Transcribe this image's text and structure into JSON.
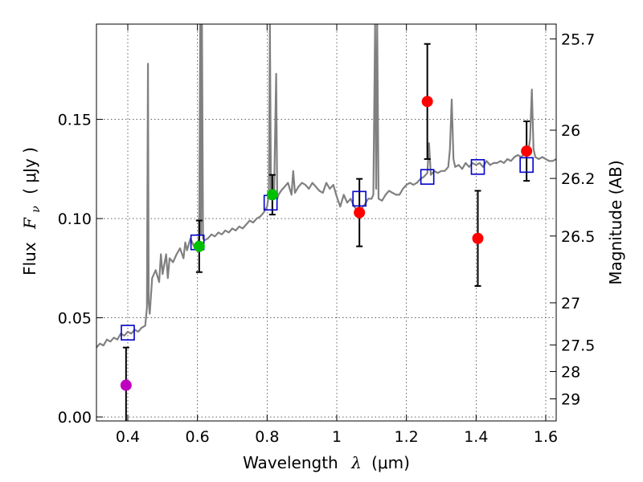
{
  "chart_data": {
    "type": "scatter",
    "xlabel": "Wavelength",
    "xlabel_symbol": "λ",
    "xlabel_unit": "(μm)",
    "ylabel": "Flux",
    "ylabel_symbol": "F",
    "ylabel_subscript": "ν",
    "ylabel_unit": "( μJy )",
    "y2label": "Magnitude (AB)",
    "xlim": [
      0.31,
      1.63
    ],
    "ylim": [
      -0.002,
      0.198
    ],
    "grid": true,
    "x_ticks": [
      0.4,
      0.6,
      0.8,
      1.0,
      1.2,
      1.4,
      1.6
    ],
    "x_tick_labels": [
      "0.4",
      "0.6",
      "0.8",
      "1",
      "1.2",
      "1.4",
      "1.6"
    ],
    "y_ticks": [
      0.0,
      0.05,
      0.1,
      0.15
    ],
    "y_tick_labels": [
      "0.00",
      "0.05",
      "0.10",
      "0.15"
    ],
    "mag_ticks": [
      25.7,
      26,
      26.2,
      26.5,
      27,
      27.5,
      28,
      29
    ],
    "mag_tick_labels": [
      "25.7",
      "26",
      "26.2",
      "26.5",
      "27",
      "27.5",
      "28",
      "29"
    ],
    "model_spectrum": {
      "name": "model spectrum",
      "color": "#808080",
      "x": [
        0.31,
        0.32,
        0.33,
        0.34,
        0.35,
        0.36,
        0.37,
        0.38,
        0.39,
        0.4,
        0.41,
        0.42,
        0.43,
        0.44,
        0.45,
        0.455,
        0.458,
        0.46,
        0.463,
        0.47,
        0.48,
        0.49,
        0.495,
        0.5,
        0.51,
        0.515,
        0.52,
        0.53,
        0.54,
        0.55,
        0.56,
        0.565,
        0.57,
        0.58,
        0.59,
        0.6,
        0.605,
        0.608,
        0.61,
        0.613,
        0.616,
        0.62,
        0.63,
        0.64,
        0.65,
        0.66,
        0.67,
        0.68,
        0.69,
        0.7,
        0.71,
        0.72,
        0.73,
        0.74,
        0.75,
        0.76,
        0.77,
        0.78,
        0.79,
        0.8,
        0.805,
        0.808,
        0.811,
        0.815,
        0.82,
        0.826,
        0.829,
        0.833,
        0.84,
        0.85,
        0.86,
        0.87,
        0.875,
        0.88,
        0.89,
        0.9,
        0.91,
        0.92,
        0.93,
        0.94,
        0.95,
        0.96,
        0.97,
        0.98,
        0.99,
        1.0,
        1.01,
        1.02,
        1.03,
        1.04,
        1.05,
        1.06,
        1.07,
        1.08,
        1.09,
        1.1,
        1.105,
        1.11,
        1.113,
        1.116,
        1.12,
        1.13,
        1.14,
        1.15,
        1.16,
        1.17,
        1.18,
        1.19,
        1.2,
        1.21,
        1.22,
        1.23,
        1.24,
        1.25,
        1.26,
        1.265,
        1.27,
        1.28,
        1.29,
        1.3,
        1.31,
        1.32,
        1.325,
        1.33,
        1.335,
        1.34,
        1.35,
        1.36,
        1.37,
        1.38,
        1.39,
        1.4,
        1.41,
        1.42,
        1.43,
        1.44,
        1.45,
        1.46,
        1.47,
        1.48,
        1.49,
        1.5,
        1.51,
        1.52,
        1.53,
        1.54,
        1.55,
        1.555,
        1.56,
        1.565,
        1.57,
        1.58,
        1.59,
        1.6,
        1.61,
        1.62,
        1.63
      ],
      "y": [
        0.035,
        0.037,
        0.036,
        0.039,
        0.038,
        0.04,
        0.039,
        0.042,
        0.041,
        0.043,
        0.042,
        0.044,
        0.043,
        0.045,
        0.046,
        0.055,
        0.178,
        0.058,
        0.052,
        0.07,
        0.074,
        0.068,
        0.082,
        0.072,
        0.082,
        0.07,
        0.08,
        0.078,
        0.082,
        0.085,
        0.08,
        0.088,
        0.084,
        0.09,
        0.086,
        0.088,
        0.09,
        0.198,
        0.092,
        0.198,
        0.09,
        0.089,
        0.09,
        0.092,
        0.091,
        0.093,
        0.092,
        0.094,
        0.093,
        0.095,
        0.094,
        0.096,
        0.095,
        0.097,
        0.099,
        0.098,
        0.1,
        0.101,
        0.103,
        0.106,
        0.112,
        0.198,
        0.114,
        0.11,
        0.112,
        0.173,
        0.11,
        0.112,
        0.114,
        0.116,
        0.118,
        0.112,
        0.124,
        0.113,
        0.116,
        0.118,
        0.117,
        0.115,
        0.118,
        0.116,
        0.114,
        0.113,
        0.118,
        0.115,
        0.117,
        0.111,
        0.106,
        0.112,
        0.108,
        0.11,
        0.106,
        0.104,
        0.105,
        0.107,
        0.11,
        0.11,
        0.112,
        0.198,
        0.115,
        0.198,
        0.11,
        0.109,
        0.112,
        0.114,
        0.113,
        0.112,
        0.112,
        0.115,
        0.117,
        0.118,
        0.117,
        0.118,
        0.12,
        0.121,
        0.123,
        0.138,
        0.122,
        0.124,
        0.123,
        0.124,
        0.124,
        0.126,
        0.135,
        0.16,
        0.13,
        0.126,
        0.127,
        0.125,
        0.128,
        0.126,
        0.128,
        0.127,
        0.128,
        0.126,
        0.129,
        0.127,
        0.128,
        0.128,
        0.129,
        0.128,
        0.13,
        0.129,
        0.131,
        0.132,
        0.131,
        0.133,
        0.134,
        0.14,
        0.165,
        0.135,
        0.131,
        0.13,
        0.131,
        0.13,
        0.129,
        0.129,
        0.13
      ]
    },
    "model_photometry": {
      "name": "model photometry",
      "color": "#0000cc",
      "points": [
        {
          "x": 0.4,
          "y": 0.0425
        },
        {
          "x": 0.6,
          "y": 0.088
        },
        {
          "x": 0.81,
          "y": 0.108
        },
        {
          "x": 1.065,
          "y": 0.11
        },
        {
          "x": 1.26,
          "y": 0.121
        },
        {
          "x": 1.405,
          "y": 0.126
        },
        {
          "x": 1.545,
          "y": 0.127
        }
      ]
    },
    "observed_photometry": {
      "name": "observed photometry",
      "points": [
        {
          "x": 0.395,
          "y": 0.016,
          "err": 0.019,
          "color": "#bf00bf"
        },
        {
          "x": 0.605,
          "y": 0.086,
          "err": 0.013,
          "color": "#00bf00"
        },
        {
          "x": 0.815,
          "y": 0.112,
          "err": 0.01,
          "color": "#00bf00"
        },
        {
          "x": 1.065,
          "y": 0.103,
          "err": 0.017,
          "color": "#ff0000"
        },
        {
          "x": 1.26,
          "y": 0.159,
          "err": 0.029,
          "color": "#ff0000"
        },
        {
          "x": 1.405,
          "y": 0.09,
          "err": 0.024,
          "color": "#ff0000"
        },
        {
          "x": 1.545,
          "y": 0.134,
          "err": 0.015,
          "color": "#ff0000"
        }
      ]
    }
  }
}
